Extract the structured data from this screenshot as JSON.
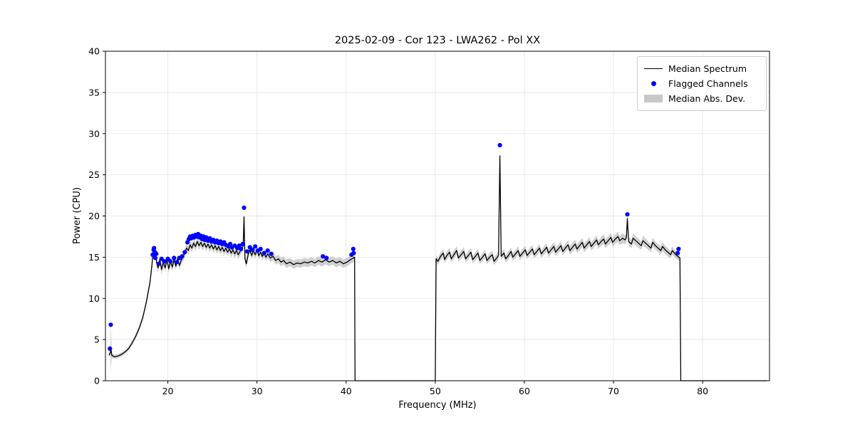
{
  "chart_data": {
    "type": "line",
    "title": "2025-02-09 - Cor 123 - LWA262 - Pol XX",
    "xlabel": "Frequency (MHz)",
    "ylabel": "Power (CPU)",
    "xlim": [
      13.0,
      87.5
    ],
    "ylim": [
      0,
      40
    ],
    "xticks": [
      20,
      30,
      40,
      50,
      60,
      70,
      80
    ],
    "yticks": [
      0,
      5,
      10,
      15,
      20,
      25,
      30,
      35,
      40
    ],
    "grid": true,
    "colors": {
      "median_line": "#000000",
      "flagged": "#0000ff",
      "band": "#c8c8c8",
      "grid": "#e8e8e8",
      "frame": "#000000"
    },
    "legend": {
      "position": "upper right",
      "entries": [
        {
          "label": "Median Spectrum",
          "type": "line",
          "color": "#000000"
        },
        {
          "label": "Flagged Channels",
          "type": "dot",
          "color": "#0000ff"
        },
        {
          "label": "Median Abs. Dev.",
          "type": "band",
          "color": "#c8c8c8"
        }
      ]
    },
    "median_spectrum": [
      [
        13.4,
        3.1,
        0.3
      ],
      [
        13.55,
        3.4,
        0.3
      ],
      [
        13.6,
        4.1,
        2.9
      ],
      [
        13.7,
        3.1,
        0.3
      ],
      [
        14.0,
        2.9,
        0.25
      ],
      [
        14.4,
        3.0,
        0.25
      ],
      [
        14.8,
        3.2,
        0.25
      ],
      [
        15.2,
        3.5,
        0.25
      ],
      [
        15.6,
        3.9,
        0.25
      ],
      [
        16.0,
        4.6,
        0.3
      ],
      [
        16.4,
        5.4,
        0.3
      ],
      [
        16.8,
        6.4,
        0.3
      ],
      [
        17.2,
        7.7,
        0.35
      ],
      [
        17.6,
        9.6,
        0.4
      ],
      [
        18.0,
        12.0,
        0.45
      ],
      [
        18.2,
        13.9,
        0.5
      ],
      [
        18.35,
        15.7,
        0.55
      ],
      [
        18.5,
        15.1,
        0.5
      ],
      [
        18.6,
        15.8,
        0.55
      ],
      [
        18.75,
        14.3,
        0.5
      ],
      [
        18.9,
        13.7,
        0.6
      ],
      [
        19.1,
        14.7,
        0.5
      ],
      [
        19.3,
        13.5,
        0.6
      ],
      [
        19.5,
        14.4,
        0.5
      ],
      [
        19.7,
        13.7,
        0.5
      ],
      [
        19.9,
        14.7,
        0.5
      ],
      [
        20.1,
        13.6,
        0.55
      ],
      [
        20.3,
        14.5,
        0.5
      ],
      [
        20.5,
        13.8,
        0.5
      ],
      [
        20.7,
        14.7,
        0.5
      ],
      [
        20.9,
        13.9,
        0.5
      ],
      [
        21.1,
        14.8,
        0.5
      ],
      [
        21.3,
        14.0,
        0.5
      ],
      [
        21.5,
        14.6,
        0.5
      ],
      [
        21.7,
        15.0,
        0.5
      ],
      [
        21.9,
        15.5,
        0.5
      ],
      [
        22.1,
        16.1,
        0.5
      ],
      [
        22.3,
        15.8,
        0.5
      ],
      [
        22.5,
        16.5,
        0.5
      ],
      [
        22.7,
        16.1,
        0.5
      ],
      [
        22.9,
        16.7,
        0.5
      ],
      [
        23.1,
        16.3,
        0.5
      ],
      [
        23.3,
        16.9,
        0.5
      ],
      [
        23.5,
        16.4,
        0.5
      ],
      [
        23.7,
        16.8,
        0.5
      ],
      [
        23.9,
        16.3,
        0.5
      ],
      [
        24.1,
        16.7,
        0.5
      ],
      [
        24.3,
        16.2,
        0.5
      ],
      [
        24.5,
        16.6,
        0.5
      ],
      [
        24.7,
        16.1,
        0.5
      ],
      [
        24.9,
        16.5,
        0.5
      ],
      [
        25.1,
        16.0,
        0.5
      ],
      [
        25.3,
        16.4,
        0.5
      ],
      [
        25.5,
        15.9,
        0.5
      ],
      [
        25.7,
        16.3,
        0.5
      ],
      [
        25.9,
        15.8,
        0.5
      ],
      [
        26.1,
        16.2,
        0.5
      ],
      [
        26.3,
        15.7,
        0.5
      ],
      [
        26.5,
        16.1,
        0.5
      ],
      [
        26.7,
        15.6,
        0.5
      ],
      [
        26.9,
        16.0,
        0.5
      ],
      [
        27.1,
        15.5,
        0.5
      ],
      [
        27.3,
        15.9,
        0.5
      ],
      [
        27.5,
        15.4,
        0.5
      ],
      [
        27.7,
        15.8,
        0.5
      ],
      [
        27.9,
        15.3,
        0.5
      ],
      [
        28.1,
        15.7,
        0.5
      ],
      [
        28.3,
        16.0,
        0.5
      ],
      [
        28.45,
        16.4,
        0.55
      ],
      [
        28.55,
        19.9,
        0.6
      ],
      [
        28.65,
        14.8,
        0.55
      ],
      [
        28.8,
        14.2,
        0.5
      ],
      [
        29.0,
        15.3,
        0.5
      ],
      [
        29.2,
        15.9,
        0.5
      ],
      [
        29.4,
        15.2,
        0.5
      ],
      [
        29.6,
        15.8,
        0.5
      ],
      [
        29.8,
        15.3,
        0.5
      ],
      [
        30.0,
        15.9,
        0.5
      ],
      [
        30.2,
        15.2,
        0.5
      ],
      [
        30.4,
        15.6,
        0.5
      ],
      [
        30.6,
        15.1,
        0.5
      ],
      [
        30.8,
        15.5,
        0.5
      ],
      [
        31.0,
        15.0,
        0.5
      ],
      [
        31.2,
        15.4,
        0.5
      ],
      [
        31.5,
        14.9,
        0.5
      ],
      [
        31.8,
        15.1,
        0.5
      ],
      [
        32.1,
        14.6,
        0.5
      ],
      [
        32.4,
        14.8,
        0.5
      ],
      [
        32.7,
        14.4,
        0.5
      ],
      [
        33.0,
        14.6,
        0.5
      ],
      [
        33.3,
        14.2,
        0.5
      ],
      [
        33.7,
        14.4,
        0.5
      ],
      [
        34.1,
        14.1,
        0.5
      ],
      [
        34.5,
        14.3,
        0.5
      ],
      [
        34.9,
        14.2,
        0.5
      ],
      [
        35.3,
        14.4,
        0.5
      ],
      [
        35.7,
        14.3,
        0.5
      ],
      [
        36.1,
        14.5,
        0.5
      ],
      [
        36.5,
        14.3,
        0.5
      ],
      [
        36.9,
        14.6,
        0.5
      ],
      [
        37.3,
        14.4,
        0.55
      ],
      [
        37.7,
        14.7,
        0.55
      ],
      [
        38.1,
        14.4,
        0.5
      ],
      [
        38.5,
        14.6,
        0.5
      ],
      [
        38.9,
        14.3,
        0.55
      ],
      [
        39.3,
        14.5,
        0.5
      ],
      [
        39.7,
        14.2,
        0.5
      ],
      [
        40.1,
        14.4,
        0.5
      ],
      [
        40.5,
        14.7,
        0.5
      ],
      [
        40.8,
        14.9,
        0.5
      ],
      [
        40.95,
        15.0,
        0.5
      ],
      [
        41.0,
        0,
        0
      ],
      [
        50.0,
        0,
        0
      ],
      [
        50.1,
        14.8,
        0.45
      ],
      [
        50.3,
        14.5,
        0.45
      ],
      [
        50.6,
        15.1,
        0.5
      ],
      [
        50.9,
        15.5,
        0.5
      ],
      [
        51.05,
        14.7,
        0.45
      ],
      [
        51.3,
        15.2,
        0.5
      ],
      [
        51.6,
        15.6,
        0.5
      ],
      [
        51.8,
        14.8,
        0.45
      ],
      [
        52.1,
        15.3,
        0.5
      ],
      [
        52.4,
        15.8,
        0.5
      ],
      [
        52.6,
        14.9,
        0.45
      ],
      [
        52.9,
        15.3,
        0.5
      ],
      [
        53.2,
        15.7,
        0.5
      ],
      [
        53.4,
        14.8,
        0.45
      ],
      [
        53.7,
        15.2,
        0.5
      ],
      [
        54.0,
        15.6,
        0.5
      ],
      [
        54.2,
        14.7,
        0.45
      ],
      [
        54.5,
        15.1,
        0.5
      ],
      [
        54.8,
        15.5,
        0.5
      ],
      [
        55.0,
        14.6,
        0.45
      ],
      [
        55.3,
        15.0,
        0.5
      ],
      [
        55.6,
        15.4,
        0.5
      ],
      [
        55.8,
        14.6,
        0.45
      ],
      [
        56.1,
        15.0,
        0.5
      ],
      [
        56.4,
        15.3,
        0.5
      ],
      [
        56.6,
        14.5,
        0.45
      ],
      [
        56.9,
        14.9,
        0.5
      ],
      [
        57.1,
        15.2,
        0.5
      ],
      [
        57.25,
        27.3,
        0.6
      ],
      [
        57.4,
        15.1,
        0.5
      ],
      [
        57.7,
        15.5,
        0.5
      ],
      [
        57.9,
        14.8,
        0.45
      ],
      [
        58.2,
        15.2,
        0.5
      ],
      [
        58.5,
        15.7,
        0.5
      ],
      [
        58.7,
        15.0,
        0.45
      ],
      [
        59.0,
        15.4,
        0.5
      ],
      [
        59.3,
        15.8,
        0.5
      ],
      [
        59.5,
        15.1,
        0.45
      ],
      [
        59.8,
        15.5,
        0.5
      ],
      [
        60.1,
        15.9,
        0.5
      ],
      [
        60.3,
        15.2,
        0.45
      ],
      [
        60.6,
        15.6,
        0.5
      ],
      [
        60.9,
        16.0,
        0.5
      ],
      [
        61.1,
        15.3,
        0.45
      ],
      [
        61.4,
        15.7,
        0.5
      ],
      [
        61.7,
        16.1,
        0.5
      ],
      [
        61.9,
        15.4,
        0.45
      ],
      [
        62.2,
        15.8,
        0.5
      ],
      [
        62.5,
        16.2,
        0.5
      ],
      [
        62.7,
        15.5,
        0.5
      ],
      [
        63.0,
        15.9,
        0.5
      ],
      [
        63.3,
        16.3,
        0.55
      ],
      [
        63.5,
        15.6,
        0.5
      ],
      [
        63.8,
        16.0,
        0.5
      ],
      [
        64.1,
        16.4,
        0.55
      ],
      [
        64.3,
        15.7,
        0.5
      ],
      [
        64.6,
        16.1,
        0.5
      ],
      [
        64.9,
        16.5,
        0.55
      ],
      [
        65.1,
        15.8,
        0.5
      ],
      [
        65.4,
        16.2,
        0.55
      ],
      [
        65.7,
        16.6,
        0.55
      ],
      [
        65.9,
        16.0,
        0.5
      ],
      [
        66.2,
        16.4,
        0.55
      ],
      [
        66.5,
        16.8,
        0.55
      ],
      [
        66.7,
        16.1,
        0.5
      ],
      [
        67.0,
        16.5,
        0.55
      ],
      [
        67.3,
        16.9,
        0.55
      ],
      [
        67.5,
        16.3,
        0.5
      ],
      [
        67.8,
        16.7,
        0.55
      ],
      [
        68.1,
        17.1,
        0.55
      ],
      [
        68.3,
        16.5,
        0.5
      ],
      [
        68.6,
        16.9,
        0.55
      ],
      [
        68.9,
        17.2,
        0.6
      ],
      [
        69.1,
        16.6,
        0.55
      ],
      [
        69.4,
        17.0,
        0.55
      ],
      [
        69.7,
        17.4,
        0.6
      ],
      [
        69.9,
        16.8,
        0.55
      ],
      [
        70.2,
        17.2,
        0.6
      ],
      [
        70.5,
        17.5,
        0.6
      ],
      [
        70.7,
        17.0,
        0.55
      ],
      [
        71.0,
        17.3,
        0.6
      ],
      [
        71.3,
        17.1,
        0.55
      ],
      [
        71.45,
        17.4,
        0.6
      ],
      [
        71.55,
        19.7,
        0.6
      ],
      [
        71.7,
        16.9,
        0.55
      ],
      [
        72.0,
        16.6,
        0.5
      ],
      [
        72.2,
        17.3,
        0.6
      ],
      [
        72.5,
        17.0,
        0.55
      ],
      [
        72.8,
        16.7,
        0.55
      ],
      [
        73.1,
        16.4,
        0.5
      ],
      [
        73.3,
        17.0,
        0.6
      ],
      [
        73.6,
        16.7,
        0.55
      ],
      [
        73.9,
        16.4,
        0.5
      ],
      [
        74.2,
        16.1,
        0.5
      ],
      [
        74.4,
        16.8,
        0.55
      ],
      [
        74.7,
        16.4,
        0.5
      ],
      [
        75.0,
        16.1,
        0.5
      ],
      [
        75.3,
        15.8,
        0.5
      ],
      [
        75.5,
        16.3,
        0.55
      ],
      [
        75.8,
        15.9,
        0.5
      ],
      [
        76.1,
        15.6,
        0.5
      ],
      [
        76.4,
        15.3,
        0.45
      ],
      [
        76.6,
        15.8,
        0.5
      ],
      [
        76.9,
        15.4,
        0.45
      ],
      [
        77.2,
        15.1,
        0.45
      ],
      [
        77.45,
        14.9,
        0.45
      ],
      [
        77.55,
        0,
        0
      ],
      [
        87.2,
        0,
        0
      ]
    ],
    "flagged_channels": [
      [
        13.5,
        3.9
      ],
      [
        13.6,
        6.8
      ],
      [
        18.3,
        15.3
      ],
      [
        18.4,
        15.9
      ],
      [
        18.45,
        16.1
      ],
      [
        18.55,
        15.6
      ],
      [
        18.6,
        14.9
      ],
      [
        18.7,
        15.4
      ],
      [
        19.0,
        14.2
      ],
      [
        19.3,
        14.8
      ],
      [
        19.6,
        14.5
      ],
      [
        20.0,
        14.8
      ],
      [
        20.3,
        14.5
      ],
      [
        20.7,
        14.9
      ],
      [
        21.0,
        14.4
      ],
      [
        21.3,
        14.9
      ],
      [
        21.6,
        15.1
      ],
      [
        21.9,
        15.6
      ],
      [
        22.2,
        16.8
      ],
      [
        22.35,
        17.2
      ],
      [
        22.5,
        17.5
      ],
      [
        22.65,
        17.3
      ],
      [
        22.8,
        17.6
      ],
      [
        22.95,
        17.4
      ],
      [
        23.1,
        17.7
      ],
      [
        23.25,
        17.5
      ],
      [
        23.4,
        17.8
      ],
      [
        23.55,
        17.4
      ],
      [
        23.7,
        17.6
      ],
      [
        23.85,
        17.2
      ],
      [
        24.0,
        17.5
      ],
      [
        24.15,
        17.1
      ],
      [
        24.3,
        17.4
      ],
      [
        24.5,
        17.0
      ],
      [
        24.7,
        17.3
      ],
      [
        24.9,
        16.9
      ],
      [
        25.1,
        17.1
      ],
      [
        25.3,
        16.8
      ],
      [
        25.5,
        17.0
      ],
      [
        25.7,
        16.7
      ],
      [
        25.9,
        16.9
      ],
      [
        26.1,
        16.6
      ],
      [
        26.3,
        16.8
      ],
      [
        26.5,
        16.5
      ],
      [
        26.8,
        16.3
      ],
      [
        27.0,
        16.6
      ],
      [
        27.2,
        16.2
      ],
      [
        27.5,
        16.4
      ],
      [
        27.8,
        16.1
      ],
      [
        28.0,
        16.4
      ],
      [
        28.2,
        16.0
      ],
      [
        28.4,
        16.6
      ],
      [
        28.55,
        21.0
      ],
      [
        28.9,
        15.7
      ],
      [
        29.2,
        16.2
      ],
      [
        29.5,
        15.9
      ],
      [
        29.8,
        16.3
      ],
      [
        30.1,
        15.8
      ],
      [
        30.4,
        16.0
      ],
      [
        30.8,
        15.5
      ],
      [
        31.2,
        15.8
      ],
      [
        31.6,
        15.4
      ],
      [
        37.4,
        15.1
      ],
      [
        37.8,
        14.9
      ],
      [
        40.6,
        15.3
      ],
      [
        40.8,
        16.0
      ],
      [
        40.85,
        15.5
      ],
      [
        57.25,
        28.6
      ],
      [
        71.55,
        20.2
      ],
      [
        77.2,
        15.5
      ],
      [
        77.3,
        16.0
      ]
    ]
  }
}
